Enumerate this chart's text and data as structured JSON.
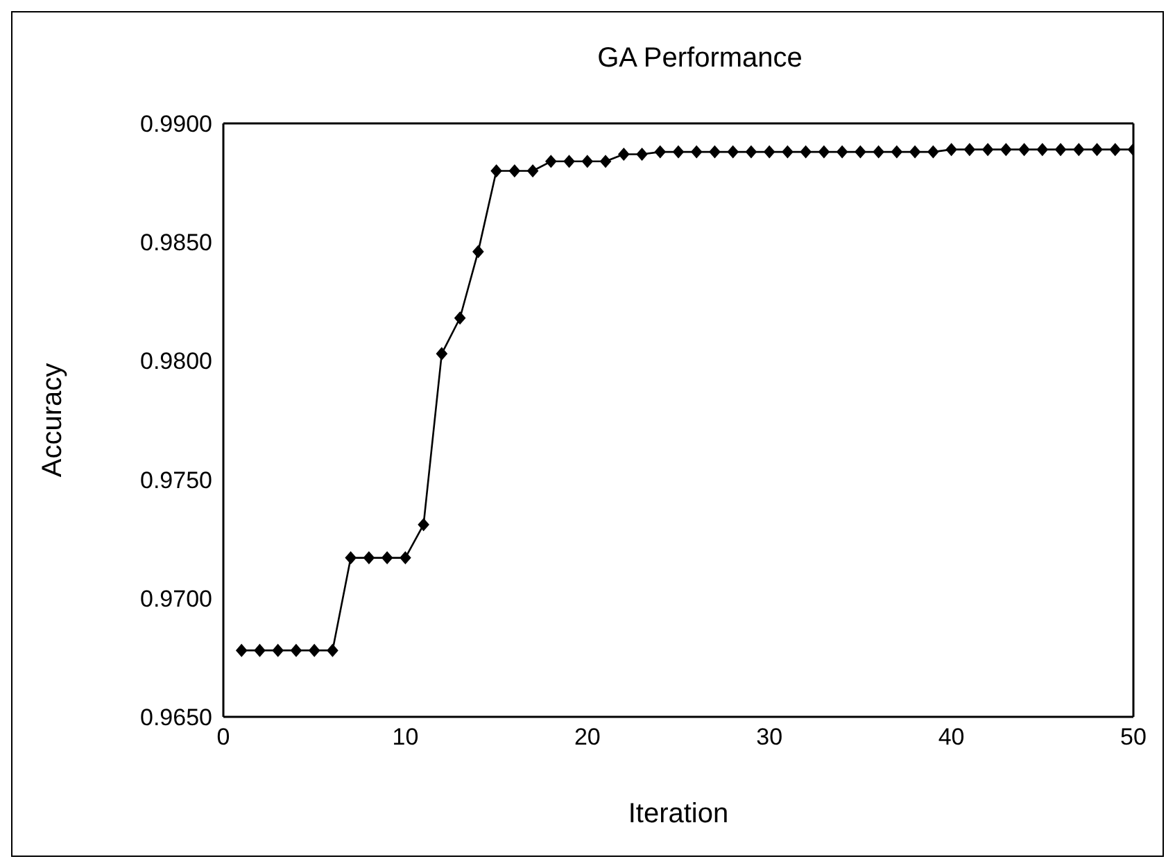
{
  "chart_data": {
    "type": "line",
    "title": "GA Performance",
    "xlabel": "Iteration",
    "ylabel": "Accuracy",
    "x": [
      1,
      2,
      3,
      4,
      5,
      6,
      7,
      8,
      9,
      10,
      11,
      12,
      13,
      14,
      15,
      16,
      17,
      18,
      19,
      20,
      21,
      22,
      23,
      24,
      25,
      26,
      27,
      28,
      29,
      30,
      31,
      32,
      33,
      34,
      35,
      36,
      37,
      38,
      39,
      40,
      41,
      42,
      43,
      44,
      45,
      46,
      47,
      48,
      49,
      50
    ],
    "series": [
      {
        "color": "#000000",
        "values": [
          0.9678,
          0.9678,
          0.9678,
          0.9678,
          0.9678,
          0.9678,
          0.9717,
          0.9717,
          0.9717,
          0.9717,
          0.9731,
          0.9803,
          0.9818,
          0.9846,
          0.988,
          0.988,
          0.988,
          0.9884,
          0.9884,
          0.9884,
          0.9884,
          0.9887,
          0.9887,
          0.9888,
          0.9888,
          0.9888,
          0.9888,
          0.9888,
          0.9888,
          0.9888,
          0.9888,
          0.9888,
          0.9888,
          0.9888,
          0.9888,
          0.9888,
          0.9888,
          0.9888,
          0.9888,
          0.9889,
          0.9889,
          0.9889,
          0.9889,
          0.9889,
          0.9889,
          0.9889,
          0.9889,
          0.9889,
          0.9889,
          0.9889
        ]
      }
    ],
    "xlim": [
      0,
      50
    ],
    "xticks": [
      0,
      10,
      20,
      30,
      40,
      50
    ],
    "ylim": [
      0.965,
      0.99
    ],
    "yticks": [
      {
        "value": 0.965,
        "label": "0.9650"
      },
      {
        "value": 0.97,
        "label": "0.9700"
      },
      {
        "value": 0.975,
        "label": "0.9750"
      },
      {
        "value": 0.98,
        "label": "0.9800"
      },
      {
        "value": 0.985,
        "label": "0.9850"
      },
      {
        "value": 0.99,
        "label": "0.9900"
      }
    ],
    "grid": false,
    "legend": false,
    "marker": "diamond",
    "line_style": "solid"
  }
}
